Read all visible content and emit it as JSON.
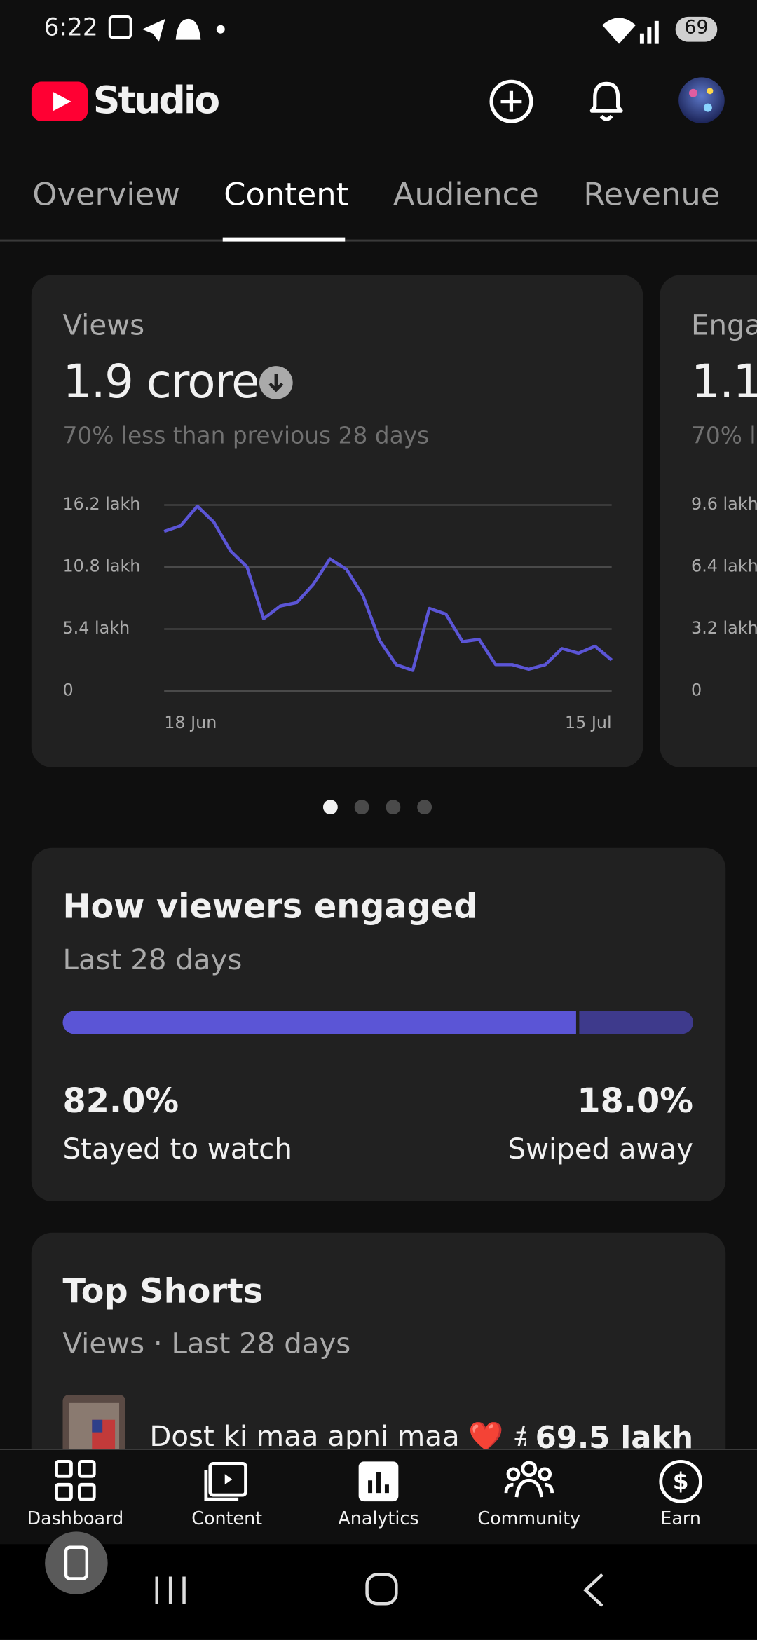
{
  "status_bar": {
    "time": "6:22",
    "battery": "69"
  },
  "header": {
    "title": "Studio"
  },
  "tabs": [
    "Overview",
    "Content",
    "Audience",
    "Revenue"
  ],
  "views_card": {
    "title": "Views",
    "total": "1.9 crore",
    "comparison": "70% less than previous 28 days",
    "chart": {
      "type": "line",
      "categories": [
        "18 Jun",
        null,
        null,
        null,
        null,
        null,
        null,
        null,
        null,
        null,
        null,
        null,
        null,
        null,
        null,
        null,
        null,
        null,
        null,
        null,
        null,
        null,
        null,
        null,
        null,
        null,
        null,
        "15 Jul"
      ],
      "values": [
        13.9,
        14.4,
        16.1,
        14.7,
        12.2,
        10.8,
        6.3,
        7.4,
        7.7,
        9.3,
        11.5,
        10.6,
        8.3,
        4.4,
        2.3,
        1.8,
        7.2,
        6.7,
        4.3,
        4.5,
        2.3,
        2.3,
        1.9,
        2.3,
        3.7,
        3.3,
        3.9,
        2.7
      ],
      "color": "#5b55d6",
      "ylim": [
        0,
        16.2
      ],
      "yticks": [
        0,
        {
          "value": 5.4,
          "label": "5.4 lakh"
        },
        {
          "value": 10.8,
          "label": "10.8 lakh"
        },
        {
          "value": 16.2,
          "label": "16.2 lakh"
        }
      ],
      "grid": true
    }
  },
  "next_card": {
    "title": "Enga",
    "total": "1.1",
    "comparison": "70% l",
    "chart": {
      "ylim": [
        0,
        9.6
      ],
      "yticks": [
        0,
        {
          "value": 3.2,
          "label": "3.2 lakh"
        },
        {
          "value": 6.4,
          "label": "6.4 lakh"
        },
        {
          "value": 9.6,
          "label": "9.6 lakh"
        }
      ]
    }
  },
  "engagement": {
    "title": "How viewers engaged",
    "subtitle": "Last 28 days",
    "segments": [
      {
        "label": "Stayed to watch",
        "value": 82.0,
        "value_label": "82.0%",
        "color": "#5b55d6"
      },
      {
        "label": "Swiped away",
        "value": 18.0,
        "value_label": "18.0%",
        "color": "#3e3a8c"
      }
    ]
  },
  "top_shorts": {
    "title": "Top Shorts",
    "subtitle": "Views · Last 28 days",
    "items": [
      {
        "title": "Dost ki maa apni maa ❤️ #…",
        "views": "69.5 lakh"
      }
    ]
  },
  "bottom_nav": [
    "Dashboard",
    "Content",
    "Analytics",
    "Community",
    "Earn"
  ]
}
